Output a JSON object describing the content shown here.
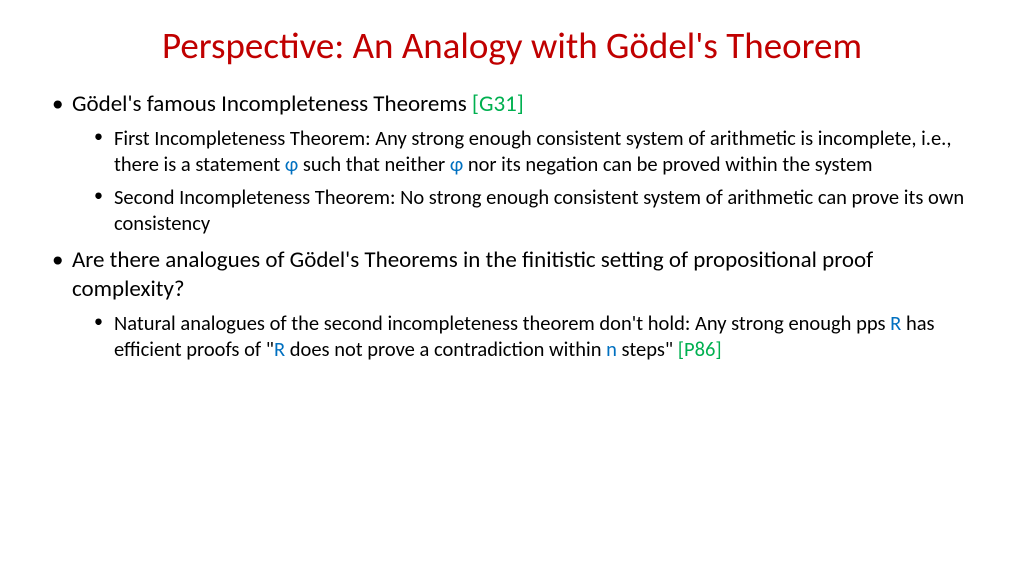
{
  "colors": {
    "title": "#c00000",
    "body": "#000000",
    "reference": "#00b050",
    "symbol": "#0070c0",
    "background": "#ffffff"
  },
  "typography": {
    "title_fontsize": 37,
    "level1_fontsize": 23,
    "level2_fontsize": 20.5,
    "font_family": "Calibri"
  },
  "title": "Perspective: An Analogy with Gödel's Theorem",
  "b1": {
    "lead": "Gödel's famous Incompleteness Theorems ",
    "ref": "[G31]",
    "sub1_a": "First Incompleteness Theorem: Any strong enough consistent system of arithmetic is incomplete, i.e., there is a statement ",
    "sub1_phi1": "φ",
    "sub1_b": " such that neither ",
    "sub1_phi2": "φ",
    "sub1_c": " nor its negation can be proved within the system",
    "sub2": "Second Incompleteness Theorem: No strong enough consistent system of arithmetic can prove its own consistency"
  },
  "b2": {
    "lead": "Are there analogues of Gödel's Theorems in the finitistic setting of propositional proof complexity?",
    "sub1_a": "Natural analogues of the second incompleteness theorem don't hold: Any strong enough pps ",
    "sub1_R1": "R",
    "sub1_b": " has efficient proofs of \"",
    "sub1_R2": "R",
    "sub1_c": " does not prove a contradiction within ",
    "sub1_n": "n",
    "sub1_d": " steps\" ",
    "sub1_ref": "[P86]"
  }
}
